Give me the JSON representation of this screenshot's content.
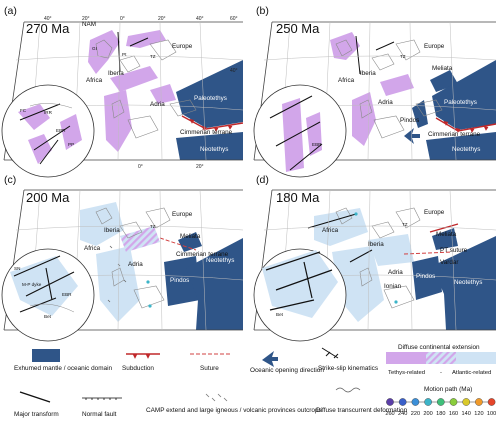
{
  "colors": {
    "exhumed": "#2f5588",
    "tethys": "#d2a6ea",
    "atlantic": "#cfe3f4",
    "coast": "#8a8a8a",
    "grid": "#bdbdbd",
    "subduction": "#c0282a",
    "suture": "#d24040"
  },
  "panels": [
    {
      "letter": "(a)",
      "age": "270 Ma",
      "labels": {
        "nam": "NAM",
        "europe": "Europe",
        "africa": "Africa",
        "iberia": "Iberia",
        "adria": "Adria",
        "ocean": "Paleotethys",
        "cimmerian": "Cimmerian terrane",
        "neo": "Neotethys"
      },
      "small": [
        "GI",
        "Pt",
        "TZ",
        "FC",
        "IRR",
        "EBR",
        "PP"
      ]
    },
    {
      "letter": "(b)",
      "age": "250 Ma",
      "labels": {
        "europe": "Europe",
        "africa": "Africa",
        "iberia": "Iberia",
        "adria": "Adria",
        "meliata": "Meliata",
        "ocean": "Paleotethys",
        "pindos": "Pindos",
        "cimmerian": "Cimmerian terrane",
        "neo": "Neotethys"
      },
      "small": [
        "TZ",
        "EBR"
      ]
    },
    {
      "letter": "(c)",
      "age": "200 Ma",
      "labels": {
        "europe": "Europe",
        "africa": "Africa",
        "iberia": "Iberia",
        "adria": "Adria",
        "meliata": "Meliata",
        "cimmerian": "Cimmerian terrane",
        "pindos": "Pindos",
        "neo": "Neotethys"
      },
      "small": [
        "TZ",
        "EBR",
        "SN",
        "M-P dyke",
        "Bet"
      ]
    },
    {
      "letter": "(d)",
      "age": "180 Ma",
      "labels": {
        "europe": "Europe",
        "africa": "Africa",
        "iberia": "Iberia",
        "adria": "Adria",
        "meliata": "Meliata",
        "pt": "PT suture",
        "vardar": "Vardar",
        "ionian": "Ionian",
        "pindos": "Pindos",
        "neo": "Neotethys"
      },
      "small": [
        "Bet",
        "TZ"
      ]
    }
  ],
  "grid_labels": {
    "top": [
      "40°",
      "20°",
      "0°",
      "20°",
      "40°",
      "60°"
    ],
    "side": [
      "40°"
    ],
    "bottom": [
      "0°",
      "20°"
    ]
  },
  "legend": {
    "exhumed": "Exhumed mantle / oceanic domain",
    "subduction": "Subduction",
    "suture": "Suture",
    "opening": "Oceanic opening direction",
    "strikeslip": "Strike-slip kinematics",
    "diffuse_title": "Diffuse continental extension",
    "tethys": "Tethys-related",
    "dash": "-",
    "atlantic": "Atlantic-related",
    "major": "Major transform",
    "normal": "Normal fault",
    "camp": "CAMP extend and large igneous / volcanic provinces outcrops",
    "transcurrent": "Diffuse transcurrent deformation",
    "motion_title": "Motion path (Ma)",
    "motion_ages": [
      "260",
      "240",
      "220",
      "200",
      "180",
      "160",
      "140",
      "120",
      "100"
    ],
    "motion_colors": [
      "#5b3ea8",
      "#3a5fc8",
      "#3b8fd8",
      "#3cb4c8",
      "#3fbf7a",
      "#8acd3c",
      "#d9c92a",
      "#f09a2a",
      "#e5452a"
    ]
  }
}
